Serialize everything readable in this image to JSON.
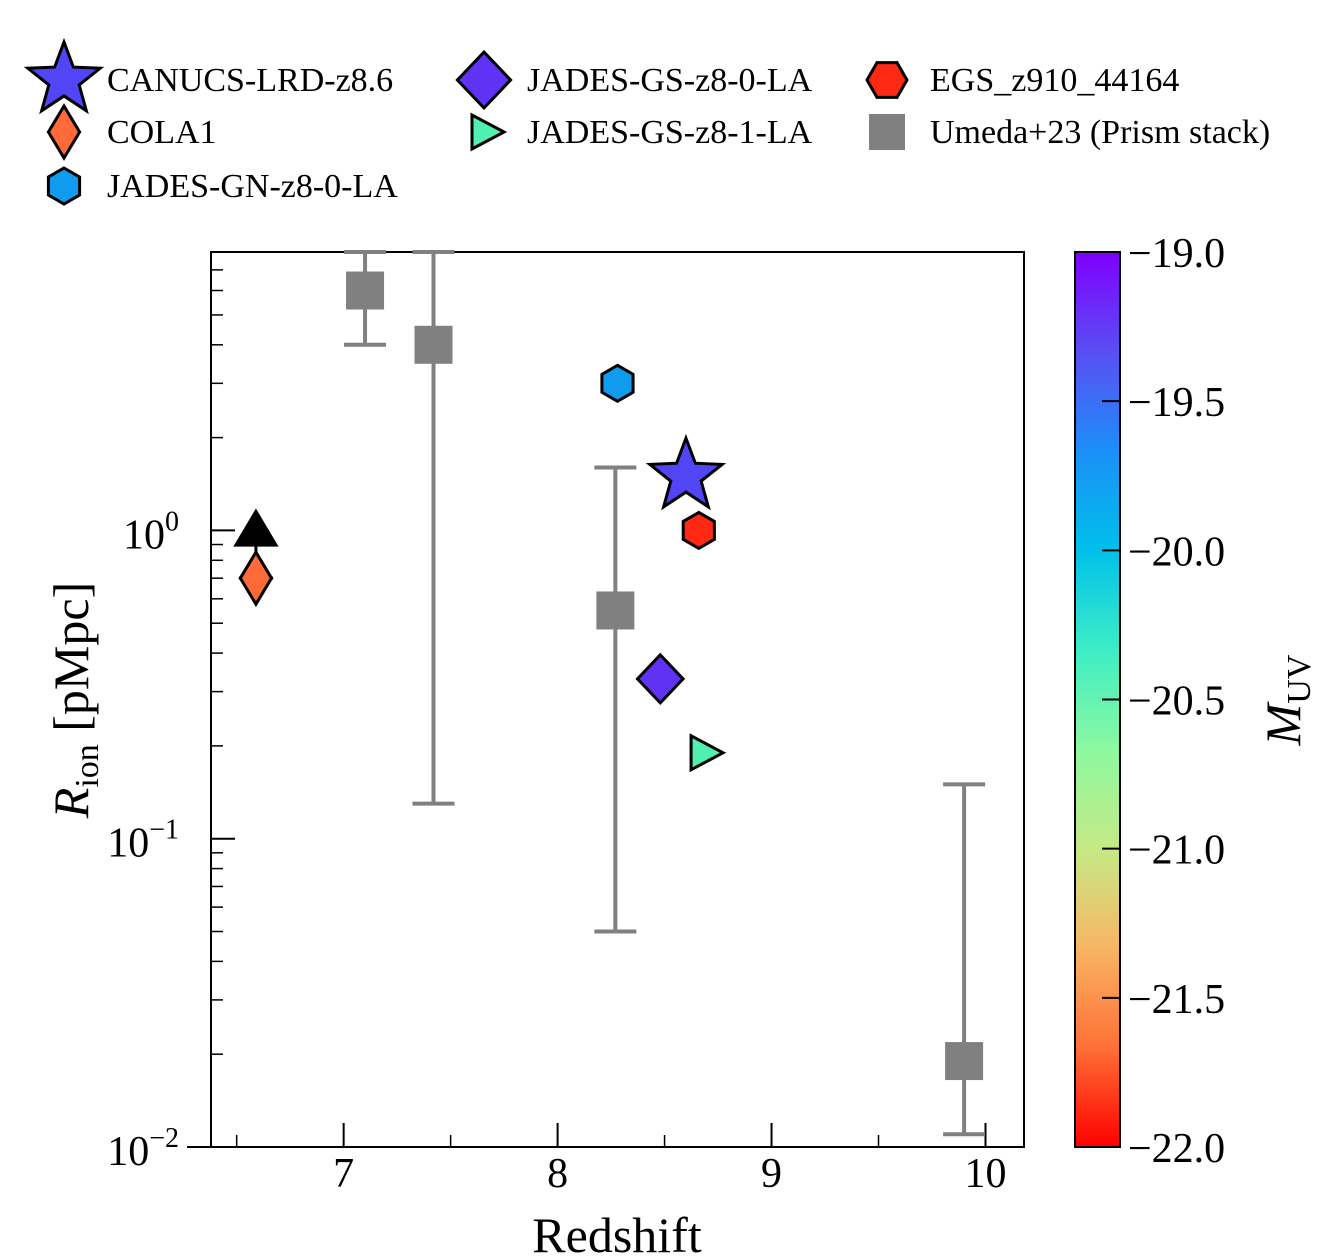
{
  "chart_data": {
    "type": "scatter",
    "title": "",
    "xlabel": "Redshift",
    "ylabel": {
      "main": "R",
      "sub": "ion",
      "unit": " [pMpc]"
    },
    "x_ticks": [
      7,
      8,
      9,
      10
    ],
    "x_tick_labels": [
      "7",
      "8",
      "9",
      "10"
    ],
    "xlim": [
      6.38,
      10.18
    ],
    "ylim": [
      0.01,
      8.0
    ],
    "y_scale": "log",
    "y_ticks": [
      {
        "value": 1,
        "base": "10",
        "exp": "0"
      },
      {
        "value": 0.1,
        "base": "10",
        "exp": "−1"
      },
      {
        "value": 0.01,
        "base": "10",
        "exp": "−2"
      }
    ],
    "grid": false,
    "legend_placement": "top",
    "colorbar": {
      "label": {
        "main": "M",
        "sub": "UV"
      },
      "range": [
        -22.0,
        -19.0
      ],
      "ticks": [
        -19.0,
        -19.5,
        -20.0,
        -20.5,
        -21.0,
        -21.5,
        -22.0
      ],
      "tick_labels": [
        "−19.0",
        "−19.5",
        "−20.0",
        "−20.5",
        "−21.0",
        "−21.5",
        "−22.0"
      ],
      "colormap": "rainbow",
      "colors": [
        "#ff0000",
        "#ff6f36",
        "#f8b563",
        "#c6e985",
        "#8df8a0",
        "#3dedc6",
        "#00c0ea",
        "#1c8ff8",
        "#5a4ef3",
        "#8000ff"
      ]
    },
    "series": [
      {
        "name": "CANUCS-LRD-z8.6",
        "marker": "star",
        "color": "#5145f6",
        "points": [
          {
            "x": 8.6,
            "y": 1.5
          }
        ]
      },
      {
        "name": "COLA1",
        "marker": "diamond",
        "color": "#ff6b38",
        "points": [
          {
            "x": 6.59,
            "y": 0.7,
            "lower_limit": true,
            "limit_y": 1.0,
            "xerr": 0.08
          }
        ]
      },
      {
        "name": "JADES-GN-z8-0-LA",
        "marker": "hexagon",
        "color": "#0f9bee",
        "points": [
          {
            "x": 8.28,
            "y": 3.0,
            "xerr": 0.07
          }
        ]
      },
      {
        "name": "JADES-GS-z8-0-LA",
        "marker": "diamond",
        "color": "#6032f6",
        "points": [
          {
            "x": 8.48,
            "y": 0.33
          }
        ]
      },
      {
        "name": "JADES-GS-z8-1-LA",
        "marker": "triangle-right",
        "color": "#50f1b0",
        "points": [
          {
            "x": 8.68,
            "y": 0.19
          }
        ]
      },
      {
        "name": "EGS_z910_44164",
        "marker": "hexagon",
        "color": "#ff2812",
        "points": [
          {
            "x": 8.66,
            "y": 1.0
          }
        ]
      },
      {
        "name": "Umeda+23 (Prism stack)",
        "marker": "square",
        "color": "#808080",
        "points": [
          {
            "x": 7.1,
            "y": 6.0,
            "y_low": 4.0,
            "y_high": 8.0
          },
          {
            "x": 7.42,
            "y": 4.0,
            "y_low": 0.13,
            "y_high": 8.0
          },
          {
            "x": 8.27,
            "y": 0.55,
            "y_low": 0.05,
            "y_high": 1.6
          },
          {
            "x": 9.9,
            "y": 0.019,
            "y_low": 0.011,
            "y_high": 0.15
          }
        ]
      }
    ]
  }
}
